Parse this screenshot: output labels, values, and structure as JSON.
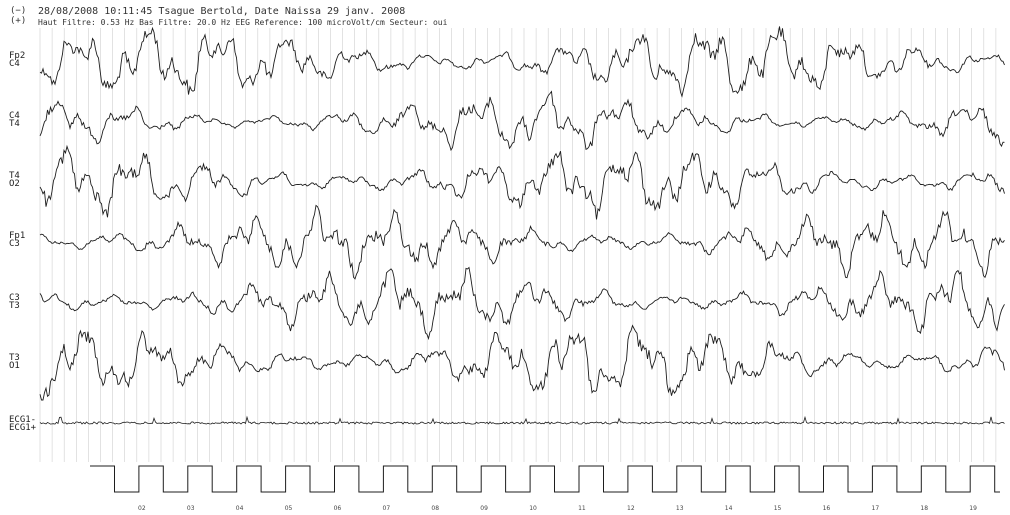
{
  "header": {
    "minus_sign": "(−)",
    "plus_sign": "(+)",
    "line1": "28/08/2008 10:11:45   Tsague Bertold, Date Naissa 29 janv. 2008",
    "line2": "Haut Filtre: 0.53 Hz  Bas Filtre: 20.0 Hz  EEG Reference: 100 microVolt/cm  Secteur: oui"
  },
  "channels": [
    {
      "top": "Fp2",
      "bottom": "C4"
    },
    {
      "top": "C4",
      "bottom": "T4"
    },
    {
      "top": "T4",
      "bottom": "O2"
    },
    {
      "top": "Fp1",
      "bottom": "C3"
    },
    {
      "top": "C3",
      "bottom": "T3"
    },
    {
      "top": "T3",
      "bottom": "O1"
    },
    {
      "top": "ECG1-",
      "bottom": "ECG1+"
    }
  ],
  "seconds": [
    "02",
    "03",
    "04",
    "05",
    "06",
    "07",
    "08",
    "09",
    "10",
    "11",
    "12",
    "13",
    "14",
    "15",
    "16",
    "17",
    "18",
    "19"
  ],
  "colors": {
    "trace": "#1e1e1e",
    "grid": "#cfcfcf",
    "paper": "#ffffff"
  }
}
